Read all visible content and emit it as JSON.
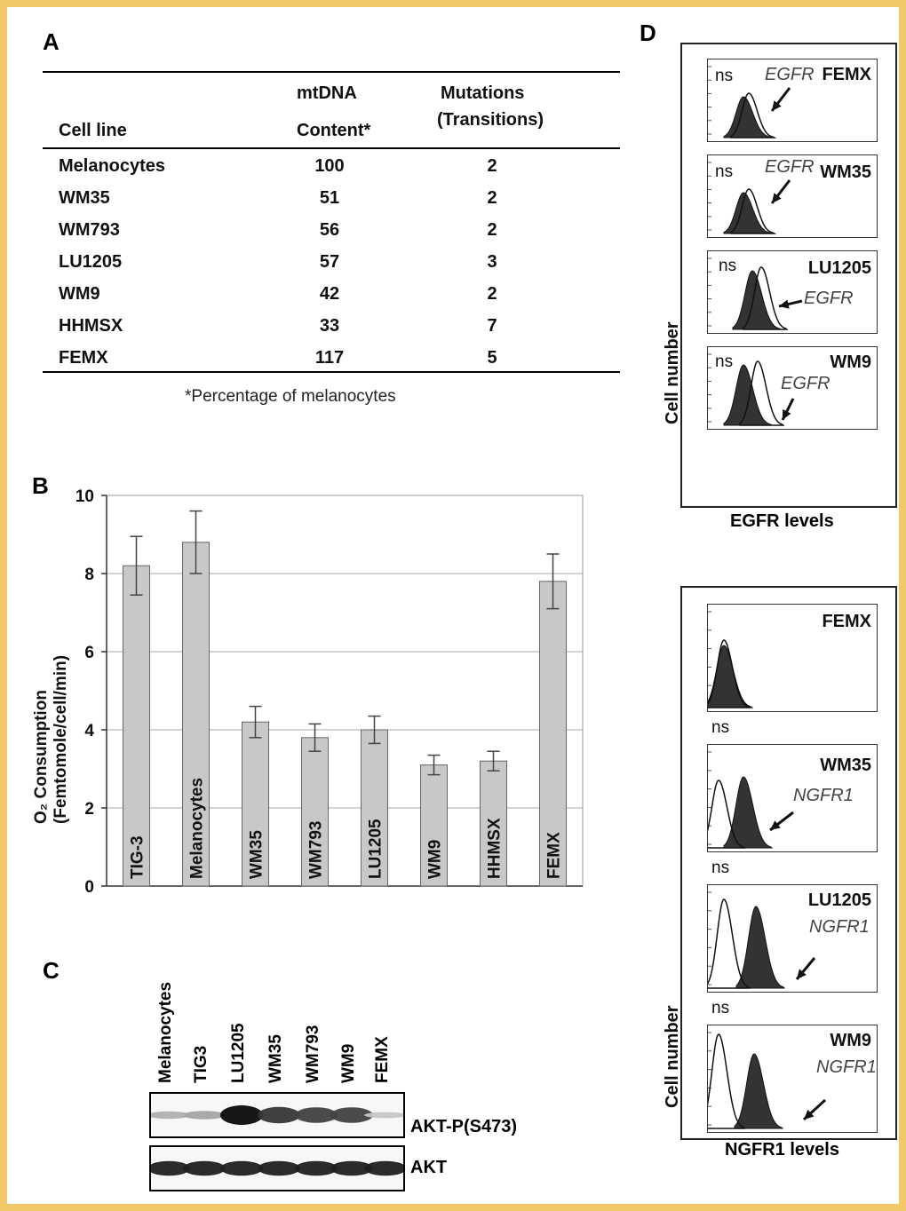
{
  "panels": {
    "a": "A",
    "b": "B",
    "c": "C",
    "d": "D"
  },
  "table": {
    "header_cell_line": "Cell line",
    "header_mtdna_1": "mtDNA",
    "header_mtdna_2": "Content*",
    "header_mut_1": "Mutations",
    "header_mut_2": "(Transitions)",
    "footnote": "*Percentage of melanocytes",
    "rows": [
      {
        "cell": "Melanocytes",
        "content": "100",
        "mut": "2"
      },
      {
        "cell": "WM35",
        "content": "51",
        "mut": "2"
      },
      {
        "cell": "WM793",
        "content": "56",
        "mut": "2"
      },
      {
        "cell": "LU1205",
        "content": "57",
        "mut": "3"
      },
      {
        "cell": "WM9",
        "content": "42",
        "mut": "2"
      },
      {
        "cell": "HHMSX",
        "content": "33",
        "mut": "7"
      },
      {
        "cell": "FEMX",
        "content": "117",
        "mut": "5"
      }
    ]
  },
  "chart_data": {
    "type": "bar",
    "categories": [
      "TIG-3",
      "Melanocytes",
      "WM35",
      "WM793",
      "LU1205",
      "WM9",
      "HHMSX",
      "FEMX"
    ],
    "values": [
      8.2,
      8.8,
      4.2,
      3.8,
      4.0,
      3.1,
      3.2,
      7.8
    ],
    "errors": [
      0.75,
      0.8,
      0.4,
      0.35,
      0.35,
      0.25,
      0.25,
      0.7
    ],
    "ylabel_line1": "O₂ Consumption",
    "ylabel_line2": "(Femtomole/cell/min)",
    "yticks": [
      "0",
      "2",
      "4",
      "6",
      "8",
      "10"
    ],
    "ylim": [
      0,
      10
    ],
    "grid": true,
    "bar_color": "#c8c8c8"
  },
  "blot": {
    "lanes": [
      "Melanocytes",
      "TIG3",
      "LU1205",
      "WM35",
      "WM793",
      "WM9",
      "FEMX"
    ],
    "row1_label": "AKT-P(S473)",
    "row2_label": "AKT",
    "row1_intensity": [
      0.25,
      0.3,
      1.0,
      0.8,
      0.75,
      0.75,
      0.15
    ],
    "row2_intensity": [
      0.9,
      0.9,
      0.9,
      0.9,
      0.9,
      0.9,
      0.9
    ]
  },
  "egfr": {
    "ylabel": "Cell number",
    "xlabel": "EGFR levels",
    "ns": "ns",
    "marker": "EGFR",
    "cells": [
      "FEMX",
      "WM35",
      "LU1205",
      "WM9"
    ]
  },
  "ngfr": {
    "ylabel": "Cell number",
    "xlabel": "NGFR1 levels",
    "ns": "ns",
    "marker": "NGFR1",
    "cells": [
      "FEMX",
      "WM35",
      "LU1205",
      "WM9"
    ]
  }
}
